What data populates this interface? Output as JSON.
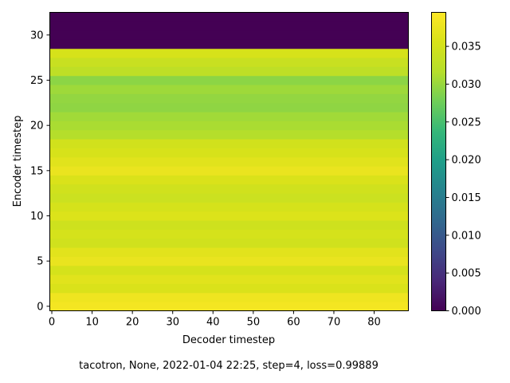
{
  "chart_data": {
    "type": "heatmap",
    "title": "",
    "xlabel": "Decoder timestep",
    "ylabel": "Encoder timestep",
    "caption": "tacotron, None, 2022-01-04 22:25, step=4, loss=0.99889",
    "xlim": [
      -0.5,
      88.5
    ],
    "ylim": [
      -0.5,
      32.5
    ],
    "x_ticks": [
      0,
      10,
      20,
      30,
      40,
      50,
      60,
      70,
      80
    ],
    "y_ticks": [
      0,
      5,
      10,
      15,
      20,
      25,
      30
    ],
    "n_decoder_steps": 89,
    "colormap": "viridis",
    "colorbar": {
      "min": 0.0,
      "max": 0.0395,
      "ticks": [
        "0.000",
        "0.005",
        "0.010",
        "0.015",
        "0.020",
        "0.025",
        "0.030",
        "0.035"
      ]
    },
    "encoder_row_values": [
      0.0385,
      0.038,
      0.0358,
      0.0365,
      0.0352,
      0.0374,
      0.0366,
      0.0347,
      0.0352,
      0.0344,
      0.036,
      0.0352,
      0.0341,
      0.0347,
      0.0358,
      0.0375,
      0.0365,
      0.0354,
      0.0348,
      0.0316,
      0.031,
      0.0305,
      0.0295,
      0.0297,
      0.0303,
      0.0293,
      0.0326,
      0.0337,
      0.0353,
      0.0,
      0.0,
      0.0,
      0.0
    ]
  },
  "grid": false,
  "legend": "colorbar-right"
}
